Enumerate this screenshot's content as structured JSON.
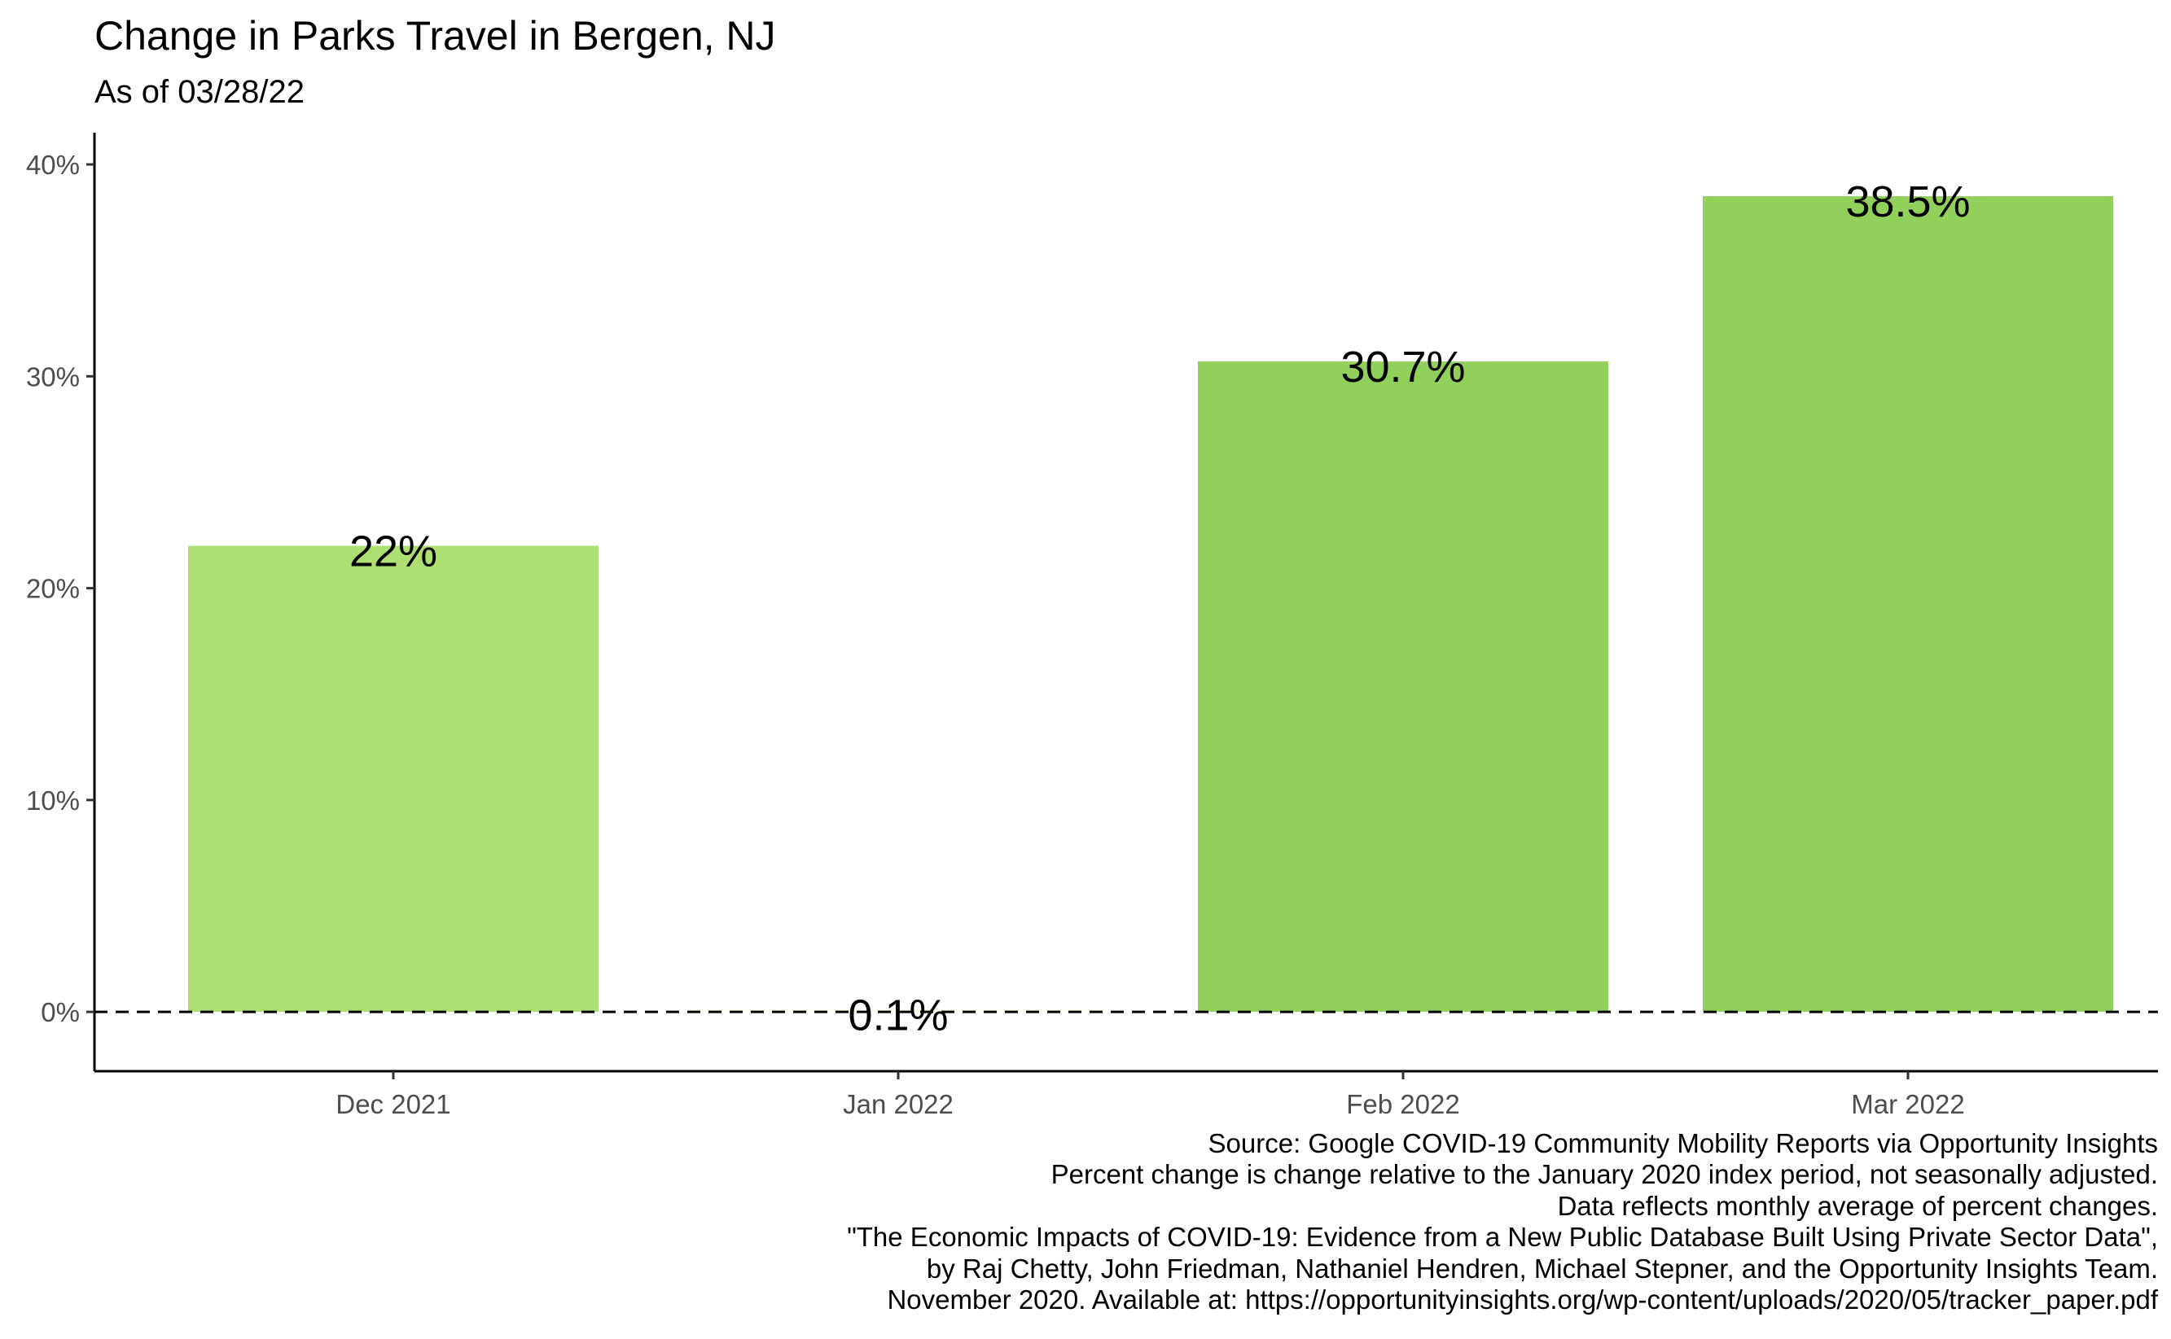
{
  "chart_data": {
    "type": "bar",
    "title": "Change in Parks Travel in Bergen, NJ",
    "subtitle": "As of 03/28/22",
    "categories": [
      "Dec 2021",
      "Jan 2022",
      "Feb 2022",
      "Mar 2022"
    ],
    "values": [
      22.0,
      0.1,
      30.7,
      38.5
    ],
    "data_labels": [
      "22%",
      "0.1%",
      "30.7%",
      "38.5%"
    ],
    "bar_colors": [
      "#addf72",
      "#fbfbe8",
      "#92d05c",
      "#92d05c"
    ],
    "y_ticks": [
      0,
      10,
      20,
      30,
      40
    ],
    "y_tick_labels": [
      "0%",
      "10%",
      "20%",
      "30%",
      "40%"
    ],
    "ylim": [
      -2.8,
      41.5
    ],
    "reference_line": {
      "y": 0,
      "style": "dashed"
    },
    "grid": false,
    "legend": "none"
  },
  "caption": [
    "Source: Google COVID-19 Community Mobility Reports via Opportunity Insights",
    "Percent change is change relative to the January 2020 index period, not seasonally adjusted.",
    "Data reflects monthly average of percent changes.",
    "\"The Economic Impacts of COVID-19: Evidence from a New Public Database Built Using Private Sector Data\",",
    "by Raj Chetty, John Friedman, Nathaniel Hendren, Michael Stepner, and the Opportunity Insights Team.",
    "November 2020. Available at: https://opportunityinsights.org/wp-content/uploads/2020/05/tracker_paper.pdf"
  ]
}
